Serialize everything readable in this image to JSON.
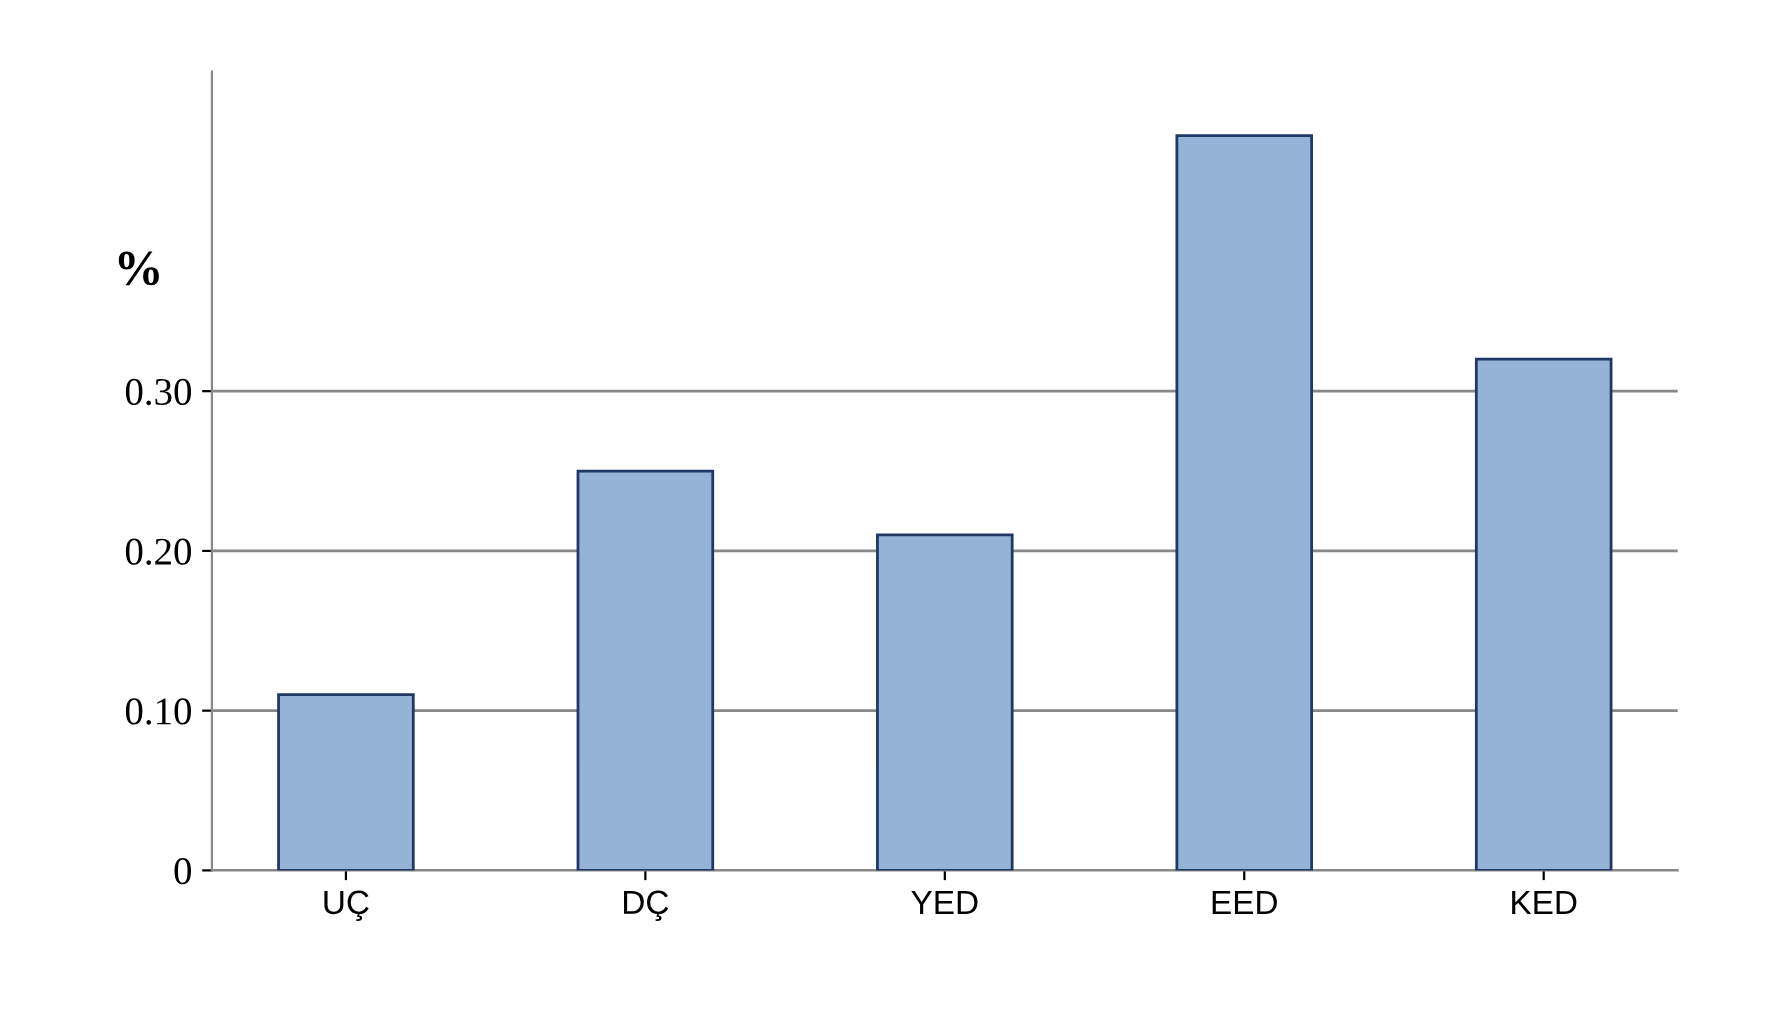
{
  "chart_data": {
    "type": "bar",
    "categories": [
      "UÇ",
      "DÇ",
      "YED",
      "EED",
      "KED"
    ],
    "values": [
      0.11,
      0.25,
      0.21,
      0.46,
      0.32
    ],
    "color": "#95b3d7",
    "ylabel": "%",
    "ylim": [
      0,
      0.5
    ],
    "yticks": [
      0,
      {
        "value": 0.1,
        "label": "0.10"
      },
      {
        "value": 0.2,
        "label": "0.20"
      },
      {
        "value": 0.3,
        "label": "0.30"
      }
    ],
    "grid": "y"
  }
}
